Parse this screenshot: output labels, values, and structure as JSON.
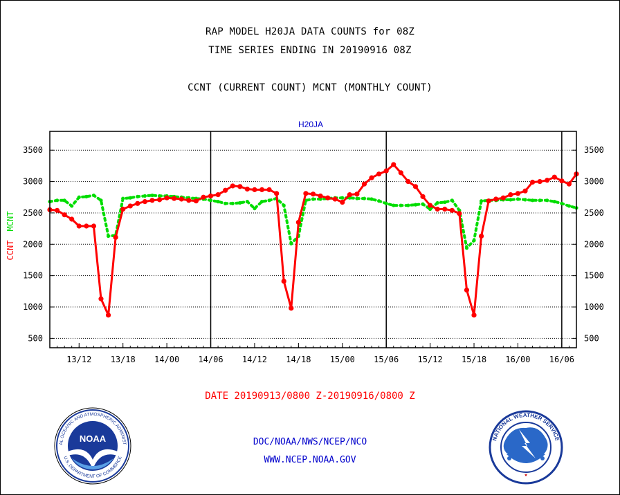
{
  "header": {
    "title": "RAP MODEL H20JA DATA COUNTS for 08Z",
    "subtitle": "TIME SERIES ENDING IN 20190916 08Z",
    "legend_line": "CCNT (CURRENT COUNT) MCNT (MONTHLY COUNT)"
  },
  "footer": {
    "date_range": "DATE 20190913/0800 Z-20190916/0800 Z",
    "org": "DOC/NOAA/NWS/NCEP/NCO",
    "url": "WWW.NCEP.NOAA.GOV"
  },
  "colors": {
    "ccnt": "#ff0000",
    "mcnt": "#00dd00",
    "axis": "#000000",
    "panel_title": "#0000cc",
    "footer": "#0000cc"
  },
  "chart_data": {
    "type": "line",
    "title": "H20JA",
    "ylabel_left": [
      "CCNT",
      "MCNT"
    ],
    "ylim": [
      350,
      3800
    ],
    "yticks": [
      500,
      1000,
      1500,
      2000,
      2500,
      3000,
      3500
    ],
    "x_unit": "hours since 20190913/0800 Z",
    "xlim": [
      0,
      72
    ],
    "xticks": [
      4,
      10,
      16,
      22,
      28,
      34,
      40,
      46,
      52,
      58,
      64,
      70
    ],
    "xtick_labels": [
      "13/12",
      "13/18",
      "14/00",
      "14/06",
      "14/12",
      "14/18",
      "15/00",
      "15/06",
      "15/12",
      "15/18",
      "16/00",
      "16/06"
    ],
    "day_lines": [
      22,
      46,
      70
    ],
    "grid": "horizontal",
    "series": [
      {
        "name": "CCNT",
        "color": "#ff0000",
        "style": "solid",
        "x": [
          0,
          1,
          2,
          3,
          4,
          5,
          6,
          7,
          8,
          9,
          10,
          11,
          12,
          13,
          14,
          15,
          16,
          17,
          18,
          19,
          20,
          21,
          22,
          23,
          24,
          25,
          26,
          27,
          28,
          29,
          30,
          31,
          32,
          33,
          34,
          35,
          36,
          37,
          38,
          39,
          40,
          41,
          42,
          43,
          44,
          45,
          46,
          47,
          48,
          49,
          50,
          51,
          52,
          53,
          54,
          55,
          56,
          57,
          58,
          59,
          60,
          61,
          62,
          63,
          64,
          65,
          66,
          67,
          68,
          69,
          70,
          71,
          72
        ],
        "values": [
          2550,
          2540,
          2470,
          2400,
          2290,
          2290,
          2290,
          1130,
          870,
          2110,
          2560,
          2610,
          2650,
          2680,
          2700,
          2710,
          2740,
          2730,
          2720,
          2700,
          2690,
          2750,
          2770,
          2790,
          2860,
          2930,
          2920,
          2880,
          2870,
          2870,
          2870,
          2810,
          1410,
          980,
          2350,
          2810,
          2800,
          2770,
          2740,
          2720,
          2670,
          2790,
          2800,
          2960,
          3060,
          3120,
          3170,
          3270,
          3140,
          3000,
          2920,
          2760,
          2620,
          2560,
          2560,
          2540,
          2490,
          1270,
          870,
          2130,
          2690,
          2720,
          2740,
          2790,
          2810,
          2850,
          2990,
          3000,
          3020,
          3070,
          3010,
          2960,
          3120
        ]
      },
      {
        "name": "MCNT",
        "color": "#00dd00",
        "style": "dotted",
        "x": [
          0,
          1,
          2,
          3,
          4,
          5,
          6,
          7,
          8,
          9,
          10,
          11,
          12,
          13,
          14,
          15,
          16,
          17,
          18,
          19,
          20,
          21,
          22,
          23,
          24,
          25,
          26,
          27,
          28,
          29,
          30,
          31,
          32,
          33,
          34,
          35,
          36,
          37,
          38,
          39,
          40,
          41,
          42,
          43,
          44,
          45,
          46,
          47,
          48,
          49,
          50,
          51,
          52,
          53,
          54,
          55,
          56,
          57,
          58,
          59,
          60,
          61,
          62,
          63,
          64,
          65,
          66,
          67,
          68,
          69,
          70,
          71,
          72
        ],
        "values": [
          2680,
          2700,
          2700,
          2610,
          2750,
          2760,
          2780,
          2700,
          2130,
          2140,
          2730,
          2740,
          2760,
          2770,
          2780,
          2770,
          2770,
          2760,
          2750,
          2740,
          2730,
          2720,
          2700,
          2680,
          2650,
          2650,
          2660,
          2680,
          2570,
          2680,
          2700,
          2730,
          2620,
          2010,
          2130,
          2700,
          2720,
          2720,
          2730,
          2740,
          2740,
          2740,
          2730,
          2730,
          2720,
          2690,
          2650,
          2620,
          2620,
          2620,
          2630,
          2640,
          2560,
          2660,
          2670,
          2700,
          2540,
          1940,
          2060,
          2690,
          2700,
          2700,
          2710,
          2710,
          2720,
          2710,
          2700,
          2700,
          2700,
          2680,
          2650,
          2610,
          2580
        ]
      }
    ]
  }
}
